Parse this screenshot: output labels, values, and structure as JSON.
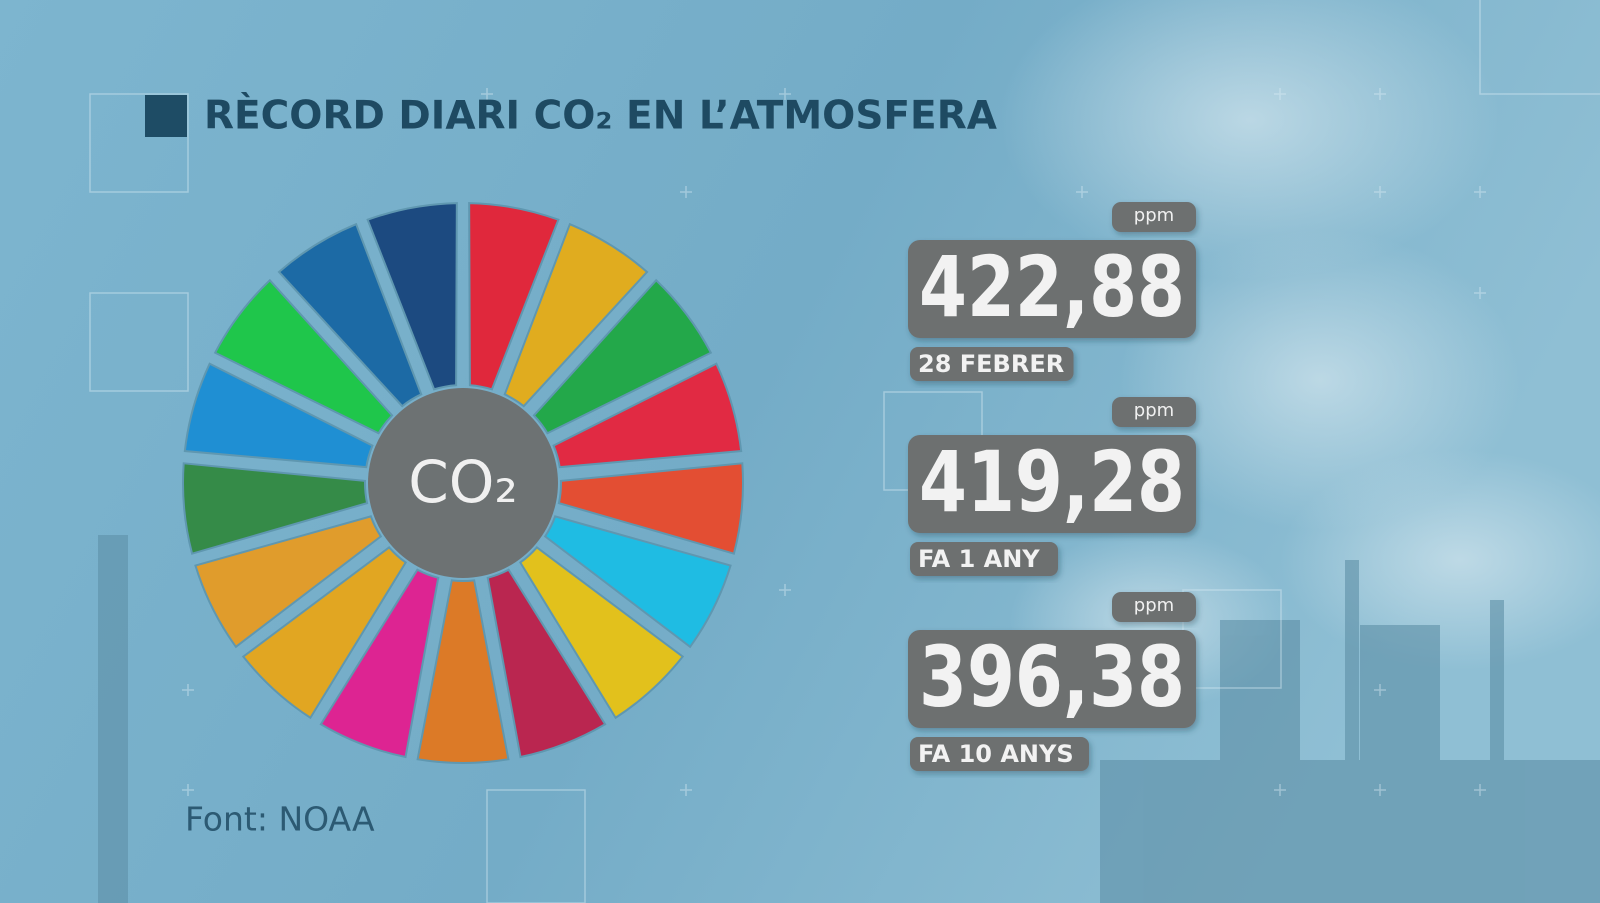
{
  "title": "RÈCORD DIARI CO₂ EN L’ATMOSFERA",
  "wheel_label": "CO₂",
  "records": [
    {
      "unit": "ppm",
      "value": "422,88",
      "label": "28 FEBRER"
    },
    {
      "unit": "ppm",
      "value": "419,28",
      "label": "FA 1 ANY"
    },
    {
      "unit": "ppm",
      "value": "396,38",
      "label": "FA 10 ANYS"
    }
  ],
  "source": "Font: NOAA"
}
